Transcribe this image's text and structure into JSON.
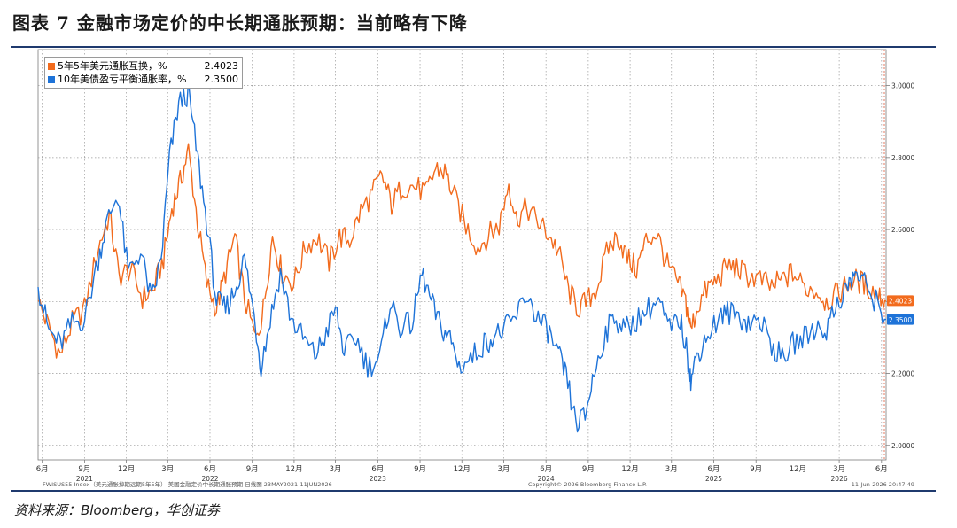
{
  "title": "图表 7 金融市场定价的中长期通胀预期：当前略有下降",
  "source": "资料来源：Bloomberg，华创证券",
  "footer": {
    "left": "FWISUS55 Index（美元通胀掉期远期5年5年） 美国金融定价中长期通胀预期 日线图 23MAY2021-11JUN2026",
    "center": "Copyright© 2026 Bloomberg Finance L.P.",
    "right": "11-Jun-2026 20:47:49"
  },
  "colors": {
    "orange": "#f26b1d",
    "blue": "#1e73d8",
    "accent": "#1f3a6e",
    "grid": "#9a9a9a"
  },
  "chart_data": {
    "type": "line",
    "title": "",
    "xlabel": "",
    "ylabel": "",
    "ylim": [
      1.96,
      3.1
    ],
    "yticks": [
      2.0,
      2.2,
      2.4,
      2.6,
      2.8,
      3.0
    ],
    "ytick_labels": [
      "2.0000",
      "2.2000",
      "2.4000",
      "2.6000",
      "2.8000",
      "3.0000"
    ],
    "xlim": [
      "2021-05-23",
      "2026-06-11"
    ],
    "xticks": [
      {
        "date": "2021-06-01",
        "label": "6月",
        "year": ""
      },
      {
        "date": "2021-09-01",
        "label": "9月",
        "year": "2021"
      },
      {
        "date": "2021-12-01",
        "label": "12月",
        "year": ""
      },
      {
        "date": "2022-03-01",
        "label": "3月",
        "year": ""
      },
      {
        "date": "2022-06-01",
        "label": "6月",
        "year": "2022"
      },
      {
        "date": "2022-09-01",
        "label": "9月",
        "year": ""
      },
      {
        "date": "2022-12-01",
        "label": "12月",
        "year": ""
      },
      {
        "date": "2023-03-01",
        "label": "3月",
        "year": ""
      },
      {
        "date": "2023-06-01",
        "label": "6月",
        "year": "2023"
      },
      {
        "date": "2023-09-01",
        "label": "9月",
        "year": ""
      },
      {
        "date": "2023-12-01",
        "label": "12月",
        "year": ""
      },
      {
        "date": "2024-03-01",
        "label": "3月",
        "year": ""
      },
      {
        "date": "2024-06-01",
        "label": "6月",
        "year": "2024"
      },
      {
        "date": "2024-09-01",
        "label": "9月",
        "year": ""
      },
      {
        "date": "2024-12-01",
        "label": "12月",
        "year": ""
      },
      {
        "date": "2025-03-01",
        "label": "3月",
        "year": ""
      },
      {
        "date": "2025-06-01",
        "label": "6月",
        "year": "2025"
      },
      {
        "date": "2025-09-01",
        "label": "9月",
        "year": ""
      },
      {
        "date": "2025-12-01",
        "label": "12月",
        "year": ""
      },
      {
        "date": "2026-03-01",
        "label": "3月",
        "year": "2026"
      },
      {
        "date": "2026-06-01",
        "label": "6月",
        "year": ""
      }
    ],
    "grid": true,
    "legend": "top-left",
    "series": [
      {
        "name": "5年5年美元通胀互换，%",
        "last_value": "2.4023",
        "last_label": "2.4023",
        "color": "#f26b1d",
        "points": [
          [
            "2021-05-23",
            2.4
          ],
          [
            "2021-06-15",
            2.33
          ],
          [
            "2021-07-10",
            2.25
          ],
          [
            "2021-08-05",
            2.34
          ],
          [
            "2021-09-01",
            2.38
          ],
          [
            "2021-10-01",
            2.55
          ],
          [
            "2021-10-25",
            2.64
          ],
          [
            "2021-11-15",
            2.47
          ],
          [
            "2021-12-10",
            2.49
          ],
          [
            "2022-01-05",
            2.41
          ],
          [
            "2022-01-28",
            2.43
          ],
          [
            "2022-02-20",
            2.52
          ],
          [
            "2022-03-10",
            2.66
          ],
          [
            "2022-03-28",
            2.73
          ],
          [
            "2022-04-15",
            2.82
          ],
          [
            "2022-05-05",
            2.62
          ],
          [
            "2022-05-25",
            2.45
          ],
          [
            "2022-06-15",
            2.38
          ],
          [
            "2022-07-05",
            2.48
          ],
          [
            "2022-07-25",
            2.58
          ],
          [
            "2022-08-15",
            2.41
          ],
          [
            "2022-09-10",
            2.29
          ],
          [
            "2022-09-25",
            2.38
          ],
          [
            "2022-10-15",
            2.58
          ],
          [
            "2022-11-05",
            2.48
          ],
          [
            "2022-11-30",
            2.45
          ],
          [
            "2022-12-25",
            2.55
          ],
          [
            "2023-01-20",
            2.58
          ],
          [
            "2023-02-15",
            2.51
          ],
          [
            "2023-03-10",
            2.58
          ],
          [
            "2023-04-01",
            2.57
          ],
          [
            "2023-04-25",
            2.65
          ],
          [
            "2023-05-20",
            2.7
          ],
          [
            "2023-06-10",
            2.75
          ],
          [
            "2023-07-01",
            2.67
          ],
          [
            "2023-07-25",
            2.72
          ],
          [
            "2023-08-20",
            2.72
          ],
          [
            "2023-09-15",
            2.7
          ],
          [
            "2023-10-05",
            2.77
          ],
          [
            "2023-10-25",
            2.76
          ],
          [
            "2023-11-15",
            2.69
          ],
          [
            "2023-12-10",
            2.61
          ],
          [
            "2024-01-05",
            2.55
          ],
          [
            "2024-02-01",
            2.59
          ],
          [
            "2024-02-20",
            2.61
          ],
          [
            "2024-03-12",
            2.73
          ],
          [
            "2024-03-28",
            2.63
          ],
          [
            "2024-04-20",
            2.66
          ],
          [
            "2024-05-15",
            2.62
          ],
          [
            "2024-06-05",
            2.59
          ],
          [
            "2024-06-28",
            2.54
          ],
          [
            "2024-07-20",
            2.43
          ],
          [
            "2024-08-10",
            2.38
          ],
          [
            "2024-08-30",
            2.4
          ],
          [
            "2024-09-20",
            2.44
          ],
          [
            "2024-10-15",
            2.55
          ],
          [
            "2024-11-05",
            2.58
          ],
          [
            "2024-11-25",
            2.52
          ],
          [
            "2024-12-15",
            2.49
          ],
          [
            "2025-01-05",
            2.57
          ],
          [
            "2025-01-28",
            2.59
          ],
          [
            "2025-02-20",
            2.5
          ],
          [
            "2025-03-15",
            2.45
          ],
          [
            "2025-04-01",
            2.4
          ],
          [
            "2025-04-12",
            2.32
          ],
          [
            "2025-04-28",
            2.39
          ],
          [
            "2025-05-20",
            2.44
          ],
          [
            "2025-06-10",
            2.46
          ],
          [
            "2025-07-01",
            2.5
          ],
          [
            "2025-07-25",
            2.49
          ],
          [
            "2025-08-15",
            2.47
          ],
          [
            "2025-09-10",
            2.46
          ],
          [
            "2025-10-05",
            2.44
          ],
          [
            "2025-10-28",
            2.46
          ],
          [
            "2025-11-20",
            2.48
          ],
          [
            "2025-12-15",
            2.44
          ],
          [
            "2026-01-10",
            2.43
          ],
          [
            "2026-02-01",
            2.4
          ],
          [
            "2026-02-25",
            2.42
          ],
          [
            "2026-03-20",
            2.45
          ],
          [
            "2026-04-10",
            2.46
          ],
          [
            "2026-05-01",
            2.44
          ],
          [
            "2026-05-25",
            2.42
          ],
          [
            "2026-06-11",
            2.4
          ]
        ]
      },
      {
        "name": "10年美债盈亏平衡通胀率，%",
        "last_value": "2.3500",
        "last_label": "2.3500",
        "color": "#1e73d8",
        "points": [
          [
            "2021-05-23",
            2.44
          ],
          [
            "2021-06-15",
            2.32
          ],
          [
            "2021-07-10",
            2.28
          ],
          [
            "2021-08-05",
            2.34
          ],
          [
            "2021-09-01",
            2.35
          ],
          [
            "2021-10-01",
            2.52
          ],
          [
            "2021-10-20",
            2.62
          ],
          [
            "2021-11-12",
            2.7
          ],
          [
            "2021-12-05",
            2.48
          ],
          [
            "2022-01-01",
            2.54
          ],
          [
            "2022-01-25",
            2.4
          ],
          [
            "2022-02-15",
            2.52
          ],
          [
            "2022-03-05",
            2.8
          ],
          [
            "2022-03-25",
            2.95
          ],
          [
            "2022-04-15",
            2.98
          ],
          [
            "2022-05-05",
            2.8
          ],
          [
            "2022-05-25",
            2.62
          ],
          [
            "2022-06-15",
            2.4
          ],
          [
            "2022-07-05",
            2.38
          ],
          [
            "2022-07-25",
            2.43
          ],
          [
            "2022-08-15",
            2.52
          ],
          [
            "2022-09-05",
            2.36
          ],
          [
            "2022-09-20",
            2.22
          ],
          [
            "2022-10-10",
            2.35
          ],
          [
            "2022-11-01",
            2.48
          ],
          [
            "2022-11-25",
            2.35
          ],
          [
            "2022-12-20",
            2.3
          ],
          [
            "2023-01-15",
            2.25
          ],
          [
            "2023-02-05",
            2.3
          ],
          [
            "2023-03-01",
            2.38
          ],
          [
            "2023-03-20",
            2.26
          ],
          [
            "2023-04-15",
            2.3
          ],
          [
            "2023-05-10",
            2.22
          ],
          [
            "2023-06-05",
            2.24
          ],
          [
            "2023-06-28",
            2.4
          ],
          [
            "2023-07-20",
            2.33
          ],
          [
            "2023-08-15",
            2.34
          ],
          [
            "2023-09-05",
            2.48
          ],
          [
            "2023-09-25",
            2.4
          ],
          [
            "2023-10-15",
            2.33
          ],
          [
            "2023-11-05",
            2.3
          ],
          [
            "2023-11-25",
            2.22
          ],
          [
            "2023-12-20",
            2.24
          ],
          [
            "2024-01-15",
            2.28
          ],
          [
            "2024-02-05",
            2.3
          ],
          [
            "2024-03-01",
            2.32
          ],
          [
            "2024-03-25",
            2.35
          ],
          [
            "2024-04-20",
            2.42
          ],
          [
            "2024-05-15",
            2.35
          ],
          [
            "2024-06-05",
            2.32
          ],
          [
            "2024-06-28",
            2.25
          ],
          [
            "2024-07-15",
            2.19
          ],
          [
            "2024-08-05",
            2.06
          ],
          [
            "2024-08-25",
            2.08
          ],
          [
            "2024-09-10",
            2.18
          ],
          [
            "2024-10-05",
            2.3
          ],
          [
            "2024-10-28",
            2.36
          ],
          [
            "2024-11-20",
            2.32
          ],
          [
            "2024-12-15",
            2.35
          ],
          [
            "2025-01-10",
            2.38
          ],
          [
            "2025-02-01",
            2.4
          ],
          [
            "2025-02-25",
            2.32
          ],
          [
            "2025-03-20",
            2.35
          ],
          [
            "2025-04-05",
            2.25
          ],
          [
            "2025-04-12",
            2.18
          ],
          [
            "2025-04-25",
            2.25
          ],
          [
            "2025-05-15",
            2.3
          ],
          [
            "2025-06-10",
            2.35
          ],
          [
            "2025-07-01",
            2.37
          ],
          [
            "2025-07-25",
            2.36
          ],
          [
            "2025-08-15",
            2.34
          ],
          [
            "2025-09-10",
            2.35
          ],
          [
            "2025-10-05",
            2.28
          ],
          [
            "2025-10-28",
            2.24
          ],
          [
            "2025-11-20",
            2.28
          ],
          [
            "2025-12-15",
            2.3
          ],
          [
            "2026-01-10",
            2.33
          ],
          [
            "2026-02-01",
            2.32
          ],
          [
            "2026-02-25",
            2.4
          ],
          [
            "2026-03-20",
            2.44
          ],
          [
            "2026-04-05",
            2.48
          ],
          [
            "2026-04-25",
            2.45
          ],
          [
            "2026-05-20",
            2.4
          ],
          [
            "2026-06-11",
            2.35
          ]
        ]
      }
    ]
  }
}
